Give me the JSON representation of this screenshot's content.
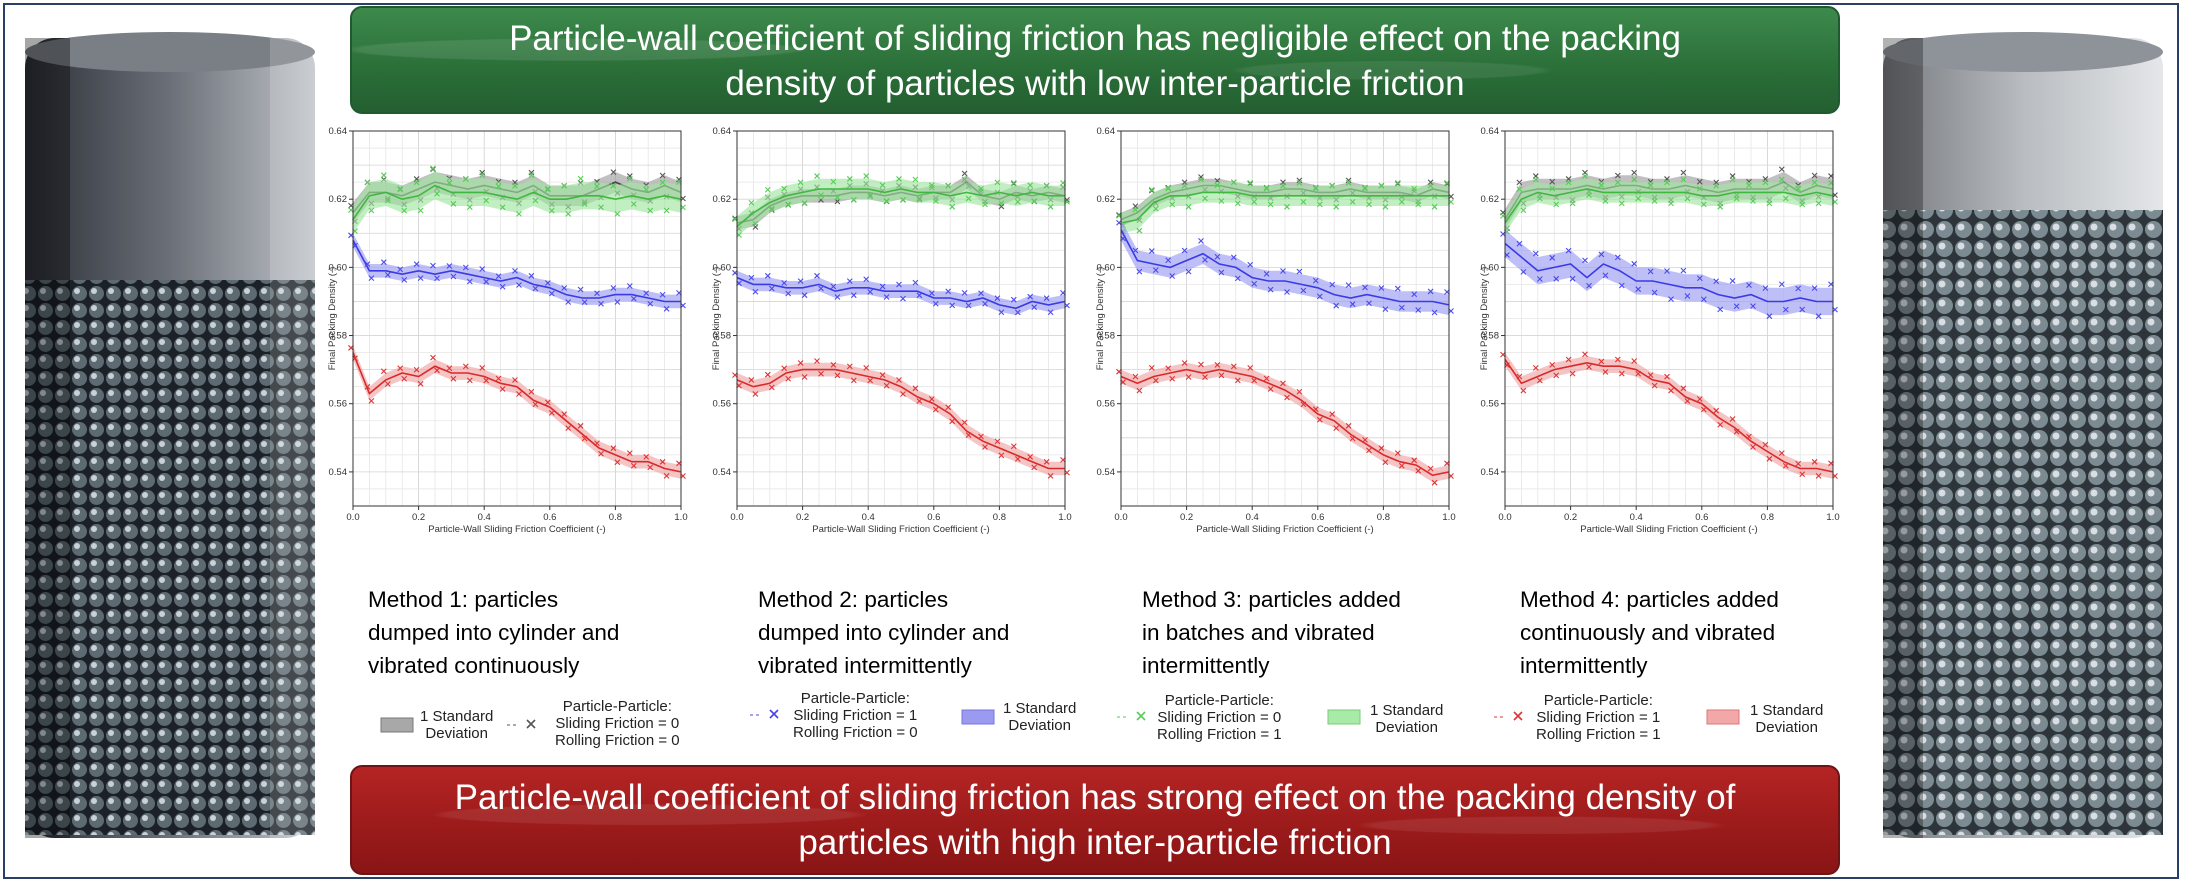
{
  "banners": {
    "top": [
      "Particle-wall coefficient of sliding friction has negligible effect on the packing",
      "density of particles with low inter-particle friction"
    ],
    "bottom": [
      "Particle-wall coefficient of sliding friction has strong effect on the packing density of",
      "particles with high inter-particle friction"
    ]
  },
  "methods": [
    [
      "Method 1: particles",
      "dumped into cylinder and",
      "vibrated continuously"
    ],
    [
      "Method 2: particles",
      "dumped into cylinder and",
      "vibrated intermittently"
    ],
    [
      "Method 3: particles added",
      "in batches and vibrated",
      "intermittently"
    ],
    [
      "Method 4: particles added",
      "continuously and vibrated",
      "intermittently"
    ]
  ],
  "legend": {
    "std_label": [
      "1 Standard",
      "Deviation"
    ],
    "header": "Particle-Particle:",
    "series_labels": [
      [
        "Sliding Friction = 0",
        "Rolling Friction = 0"
      ],
      [
        "Sliding Friction = 1",
        "Rolling Friction = 0"
      ],
      [
        "Sliding Friction = 0",
        "Rolling Friction = 1"
      ],
      [
        "Sliding Friction = 1",
        "Rolling Friction = 1"
      ]
    ],
    "colors": [
      "#555555",
      "#4444ee",
      "#55cc55",
      "#e03333"
    ],
    "band_colors": [
      "#a8a8a8",
      "#9a9af0",
      "#a8eaa8",
      "#f2a8a8"
    ]
  },
  "chart_data": [
    {
      "type": "line",
      "panel": "Method 1",
      "xlabel": "Particle-Wall Sliding Friction Coefficient (-)",
      "ylabel": "Final Packing Density (-)",
      "xlim": [
        0,
        1
      ],
      "ylim": [
        0.53,
        0.64
      ],
      "xticks": [
        "0.0",
        "0.2",
        "0.4",
        "0.6",
        "0.8",
        "1.0"
      ],
      "yticks": [
        "0.54",
        "0.56",
        "0.58",
        "0.60",
        "0.62",
        "0.64"
      ],
      "grid": true,
      "x": [
        0,
        0.05,
        0.1,
        0.15,
        0.2,
        0.25,
        0.3,
        0.35,
        0.4,
        0.45,
        0.5,
        0.55,
        0.6,
        0.65,
        0.7,
        0.75,
        0.8,
        0.85,
        0.9,
        0.95,
        1
      ],
      "series": [
        {
          "color": "gray",
          "values": [
            0.616,
            0.622,
            0.622,
            0.621,
            0.623,
            0.625,
            0.624,
            0.623,
            0.624,
            0.623,
            0.622,
            0.624,
            0.621,
            0.621,
            0.621,
            0.623,
            0.625,
            0.623,
            0.622,
            0.624,
            0.622
          ],
          "band": 0.003
        },
        {
          "color": "green",
          "values": [
            0.614,
            0.621,
            0.622,
            0.62,
            0.621,
            0.624,
            0.622,
            0.622,
            0.622,
            0.621,
            0.62,
            0.622,
            0.62,
            0.62,
            0.621,
            0.621,
            0.62,
            0.621,
            0.62,
            0.621,
            0.62
          ],
          "band": 0.004
        },
        {
          "color": "blue",
          "values": [
            0.608,
            0.599,
            0.599,
            0.598,
            0.599,
            0.598,
            0.599,
            0.598,
            0.597,
            0.596,
            0.597,
            0.595,
            0.594,
            0.592,
            0.591,
            0.591,
            0.592,
            0.592,
            0.591,
            0.59,
            0.59
          ],
          "band": 0.002
        },
        {
          "color": "red",
          "values": [
            0.575,
            0.563,
            0.567,
            0.569,
            0.568,
            0.571,
            0.569,
            0.569,
            0.568,
            0.566,
            0.565,
            0.561,
            0.559,
            0.555,
            0.551,
            0.547,
            0.545,
            0.543,
            0.543,
            0.541,
            0.54
          ],
          "band": 0.002
        }
      ]
    },
    {
      "type": "line",
      "panel": "Method 2",
      "xlabel": "Particle-Wall Sliding Friction Coefficient (-)",
      "ylabel": "Final Packing Density (-)",
      "xlim": [
        0,
        1
      ],
      "ylim": [
        0.53,
        0.64
      ],
      "xticks": [
        "0.0",
        "0.2",
        "0.4",
        "0.6",
        "0.8",
        "1.0"
      ],
      "yticks": [
        "0.54",
        "0.56",
        "0.58",
        "0.60",
        "0.62",
        "0.64"
      ],
      "grid": true,
      "x": [
        0,
        0.05,
        0.1,
        0.15,
        0.2,
        0.25,
        0.3,
        0.35,
        0.4,
        0.45,
        0.5,
        0.55,
        0.6,
        0.65,
        0.7,
        0.75,
        0.8,
        0.85,
        0.9,
        0.95,
        1
      ],
      "series": [
        {
          "color": "gray",
          "values": [
            0.613,
            0.614,
            0.618,
            0.62,
            0.621,
            0.621,
            0.621,
            0.622,
            0.622,
            0.621,
            0.622,
            0.621,
            0.622,
            0.622,
            0.625,
            0.621,
            0.62,
            0.622,
            0.621,
            0.622,
            0.621
          ],
          "band": 0.002
        },
        {
          "color": "green",
          "values": [
            0.612,
            0.616,
            0.619,
            0.621,
            0.622,
            0.623,
            0.623,
            0.623,
            0.623,
            0.622,
            0.623,
            0.622,
            0.622,
            0.621,
            0.622,
            0.621,
            0.622,
            0.621,
            0.622,
            0.621,
            0.621
          ],
          "band": 0.003
        },
        {
          "color": "blue",
          "values": [
            0.597,
            0.595,
            0.595,
            0.594,
            0.594,
            0.595,
            0.593,
            0.594,
            0.594,
            0.593,
            0.593,
            0.593,
            0.591,
            0.591,
            0.59,
            0.591,
            0.589,
            0.588,
            0.59,
            0.589,
            0.59
          ],
          "band": 0.002
        },
        {
          "color": "red",
          "values": [
            0.567,
            0.565,
            0.566,
            0.569,
            0.57,
            0.57,
            0.57,
            0.569,
            0.568,
            0.567,
            0.565,
            0.562,
            0.56,
            0.557,
            0.552,
            0.549,
            0.547,
            0.545,
            0.543,
            0.541,
            0.541
          ],
          "band": 0.002
        }
      ]
    },
    {
      "type": "line",
      "panel": "Method 3",
      "xlabel": "Particle-Wall Sliding Friction Coefficient (-)",
      "ylabel": "Final Packing Density (-)",
      "xlim": [
        0,
        1
      ],
      "ylim": [
        0.53,
        0.64
      ],
      "xticks": [
        "0.0",
        "0.2",
        "0.4",
        "0.6",
        "0.8",
        "1.0"
      ],
      "yticks": [
        "0.54",
        "0.56",
        "0.58",
        "0.60",
        "0.62",
        "0.64"
      ],
      "grid": true,
      "x": [
        0,
        0.05,
        0.1,
        0.15,
        0.2,
        0.25,
        0.3,
        0.35,
        0.4,
        0.45,
        0.5,
        0.55,
        0.6,
        0.65,
        0.7,
        0.75,
        0.8,
        0.85,
        0.9,
        0.95,
        1
      ],
      "series": [
        {
          "color": "gray",
          "values": [
            0.614,
            0.616,
            0.62,
            0.622,
            0.623,
            0.624,
            0.624,
            0.623,
            0.622,
            0.622,
            0.623,
            0.623,
            0.622,
            0.622,
            0.623,
            0.622,
            0.622,
            0.622,
            0.621,
            0.623,
            0.622
          ],
          "band": 0.002
        },
        {
          "color": "green",
          "values": [
            0.613,
            0.614,
            0.619,
            0.621,
            0.621,
            0.622,
            0.622,
            0.622,
            0.621,
            0.621,
            0.621,
            0.621,
            0.621,
            0.621,
            0.621,
            0.621,
            0.621,
            0.621,
            0.621,
            0.621,
            0.621
          ],
          "band": 0.003
        },
        {
          "color": "blue",
          "values": [
            0.611,
            0.602,
            0.601,
            0.6,
            0.602,
            0.604,
            0.601,
            0.6,
            0.597,
            0.596,
            0.596,
            0.595,
            0.594,
            0.592,
            0.591,
            0.592,
            0.591,
            0.59,
            0.59,
            0.59,
            0.589
          ],
          "band": 0.003
        },
        {
          "color": "red",
          "values": [
            0.568,
            0.566,
            0.568,
            0.569,
            0.57,
            0.569,
            0.57,
            0.569,
            0.568,
            0.566,
            0.564,
            0.561,
            0.557,
            0.555,
            0.551,
            0.548,
            0.545,
            0.543,
            0.542,
            0.539,
            0.54
          ],
          "band": 0.002
        }
      ]
    },
    {
      "type": "line",
      "panel": "Method 4",
      "xlabel": "Particle-Wall Sliding Friction Coefficient (-)",
      "ylabel": "Final Packing Density (-)",
      "xlim": [
        0,
        1
      ],
      "ylim": [
        0.53,
        0.64
      ],
      "xticks": [
        "0.0",
        "0.2",
        "0.4",
        "0.6",
        "0.8",
        "1.0"
      ],
      "yticks": [
        "0.54",
        "0.56",
        "0.58",
        "0.60",
        "0.62",
        "0.64"
      ],
      "grid": true,
      "x": [
        0,
        0.05,
        0.1,
        0.15,
        0.2,
        0.25,
        0.3,
        0.35,
        0.4,
        0.45,
        0.5,
        0.55,
        0.6,
        0.65,
        0.7,
        0.75,
        0.8,
        0.85,
        0.9,
        0.95,
        1
      ],
      "series": [
        {
          "color": "gray",
          "values": [
            0.614,
            0.622,
            0.623,
            0.623,
            0.623,
            0.624,
            0.623,
            0.624,
            0.624,
            0.623,
            0.623,
            0.624,
            0.623,
            0.622,
            0.623,
            0.623,
            0.623,
            0.625,
            0.622,
            0.624,
            0.623
          ],
          "band": 0.003
        },
        {
          "color": "green",
          "values": [
            0.613,
            0.62,
            0.622,
            0.621,
            0.622,
            0.623,
            0.622,
            0.622,
            0.622,
            0.622,
            0.622,
            0.622,
            0.621,
            0.621,
            0.622,
            0.622,
            0.622,
            0.622,
            0.621,
            0.622,
            0.621
          ],
          "band": 0.003
        },
        {
          "color": "blue",
          "values": [
            0.607,
            0.603,
            0.599,
            0.6,
            0.601,
            0.597,
            0.601,
            0.599,
            0.596,
            0.596,
            0.595,
            0.594,
            0.594,
            0.592,
            0.591,
            0.592,
            0.59,
            0.59,
            0.591,
            0.59,
            0.59
          ],
          "band": 0.004
        },
        {
          "color": "red",
          "values": [
            0.573,
            0.566,
            0.568,
            0.57,
            0.571,
            0.572,
            0.571,
            0.571,
            0.57,
            0.567,
            0.566,
            0.562,
            0.56,
            0.556,
            0.553,
            0.549,
            0.546,
            0.543,
            0.541,
            0.541,
            0.54
          ],
          "band": 0.002
        }
      ]
    }
  ]
}
